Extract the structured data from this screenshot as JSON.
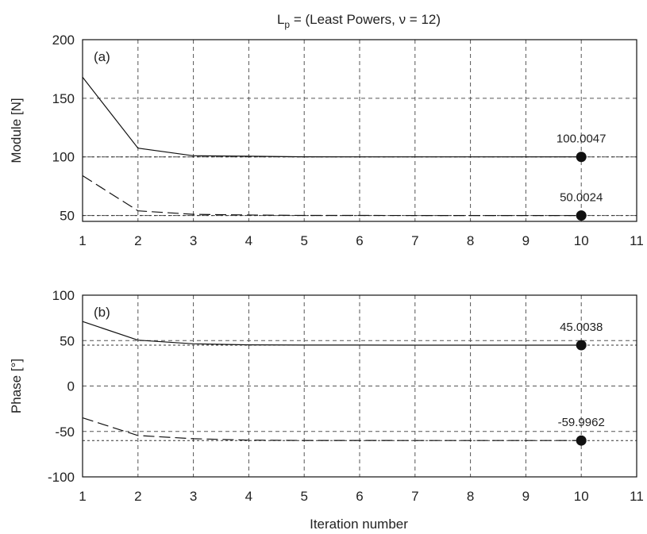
{
  "title": {
    "prefix": "L",
    "sub": "p",
    "rest": " = (Least Powers, ν = 12)"
  },
  "xlabel": "Iteration number",
  "chart_data": [
    {
      "type": "line",
      "panel": "(a)",
      "ylabel": "Module [N]",
      "xlim": [
        1,
        11
      ],
      "ylim": [
        45,
        200
      ],
      "xticks": [
        1,
        2,
        3,
        4,
        5,
        6,
        7,
        8,
        9,
        10,
        11
      ],
      "yticks": [
        50,
        100,
        150,
        200
      ],
      "grid": true,
      "x": [
        1,
        2,
        3,
        4,
        5,
        6,
        7,
        8,
        9,
        10
      ],
      "series": [
        {
          "style": "solid",
          "values": [
            168,
            107.5,
            101,
            100.6,
            100.1,
            100.05,
            100.02,
            100.01,
            100.005,
            100.0047
          ]
        },
        {
          "style": "dashed",
          "values": [
            84,
            54,
            51,
            50.4,
            50.1,
            50.05,
            50.03,
            50.02,
            50.01,
            50.0024
          ]
        }
      ],
      "reference_lines": [
        100,
        50
      ],
      "markers": [
        {
          "x": 10,
          "y": 100.0047,
          "label": "100.0047"
        },
        {
          "x": 10,
          "y": 50.0024,
          "label": "50.0024"
        }
      ]
    },
    {
      "type": "line",
      "panel": "(b)",
      "ylabel": "Phase [°]",
      "xlim": [
        1,
        11
      ],
      "ylim": [
        -100,
        100
      ],
      "xticks": [
        1,
        2,
        3,
        4,
        5,
        6,
        7,
        8,
        9,
        10,
        11
      ],
      "yticks": [
        -100,
        -50,
        0,
        50,
        100
      ],
      "grid": true,
      "x": [
        1,
        2,
        3,
        4,
        5,
        6,
        7,
        8,
        9,
        10
      ],
      "series": [
        {
          "style": "solid",
          "values": [
            71,
            50.5,
            46.5,
            45.3,
            45.1,
            45.05,
            45.02,
            45.01,
            45.005,
            45.0038
          ]
        },
        {
          "style": "dashed",
          "values": [
            -35,
            -54.5,
            -58,
            -59.6,
            -59.9,
            -59.95,
            -59.98,
            -59.99,
            -59.995,
            -59.9962
          ]
        }
      ],
      "reference_lines": [
        45,
        -60
      ],
      "markers": [
        {
          "x": 10,
          "y": 45.0038,
          "label": "45.0038"
        },
        {
          "x": 10,
          "y": -59.9962,
          "label": "-59.9962"
        }
      ]
    }
  ]
}
